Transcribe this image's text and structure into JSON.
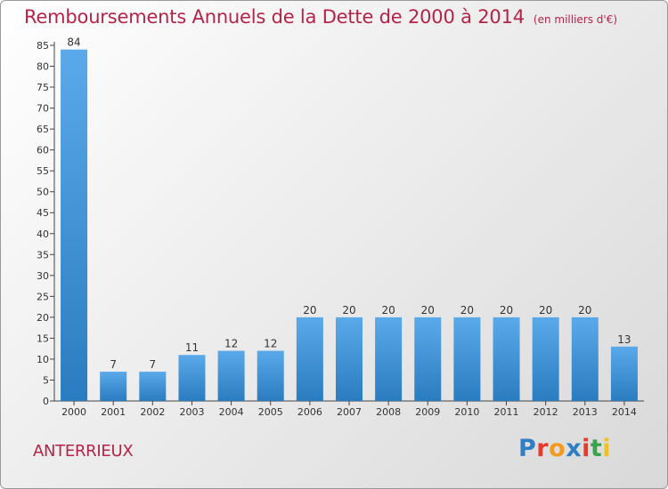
{
  "header": {
    "title": "Remboursements Annuels de la Dette de 2000 à 2014",
    "unit": "(en milliers d'€)"
  },
  "footer": {
    "commune": "ANTERRIEUX",
    "logo": "Proxiti",
    "logo_colors": [
      "#2f7fc4",
      "#e53a2c",
      "#f29a1c",
      "#2f7fc4",
      "#e53a2c",
      "#3aa24c",
      "#f2c21c"
    ]
  },
  "chart_data": {
    "type": "bar",
    "title": "Remboursements Annuels de la Dette de 2000 à 2014",
    "unit": "(en milliers d'€)",
    "xlabel": "",
    "ylabel": "",
    "categories": [
      "2000",
      "2001",
      "2002",
      "2003",
      "2004",
      "2005",
      "2006",
      "2007",
      "2008",
      "2009",
      "2010",
      "2011",
      "2012",
      "2013",
      "2014"
    ],
    "values": [
      84,
      7,
      7,
      11,
      12,
      12,
      20,
      20,
      20,
      20,
      20,
      20,
      20,
      20,
      13
    ],
    "ylim": [
      0,
      85
    ],
    "yticks": [
      0,
      5,
      10,
      15,
      20,
      25,
      30,
      35,
      40,
      45,
      50,
      55,
      60,
      65,
      70,
      75,
      80,
      85
    ],
    "grid": false,
    "bar_color_light": "#5aaaea",
    "bar_color_dark": "#2a7cc0"
  }
}
